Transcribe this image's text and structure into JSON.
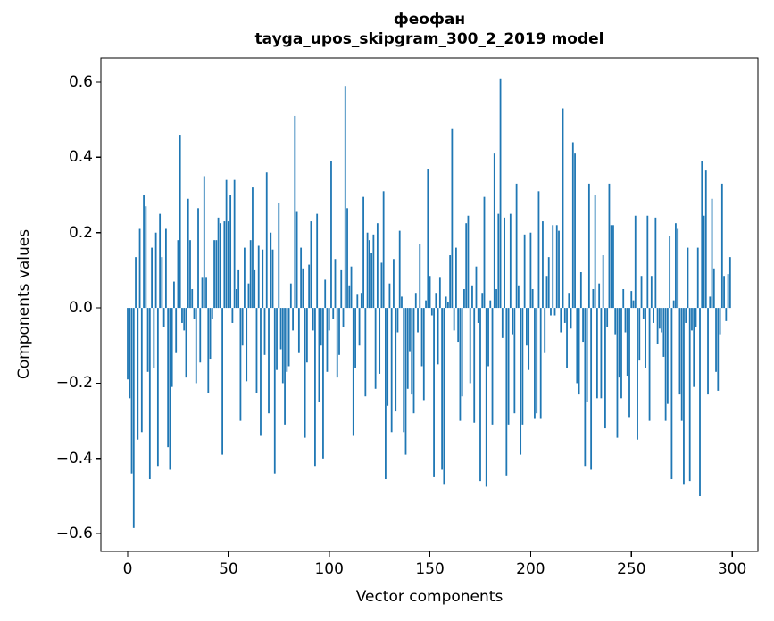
{
  "title": {
    "line1": "феофан",
    "line2": "tayga_upos_skipgram_300_2_2019 model"
  },
  "axes": {
    "xlabel": "Vector components",
    "ylabel": "Components values",
    "xticks": [
      0,
      50,
      100,
      150,
      200,
      250,
      300
    ],
    "xtick_labels": [
      "0",
      "50",
      "100",
      "150",
      "200",
      "250",
      "300"
    ],
    "yticks": [
      0.6,
      0.4,
      0.2,
      0.0,
      -0.2,
      -0.4,
      -0.6
    ],
    "ytick_labels": [
      "0.6",
      "0.4",
      "0.2",
      "0.0",
      "−0.2",
      "−0.4",
      "−0.6"
    ]
  },
  "colors": {
    "bar": "#1f77b4",
    "spine": "#000000",
    "text": "#000000",
    "background": "#ffffff"
  },
  "chart_data": {
    "type": "bar",
    "title": "феофан\ntayga_upos_skipgram_300_2_2019 model",
    "xlabel": "Vector components",
    "ylabel": "Components values",
    "n_components": 300,
    "xlim": [
      -13.3,
      312.8
    ],
    "ylim": [
      -0.647,
      0.664
    ],
    "grid": false,
    "legend": "none",
    "bar_color": "#1f77b4",
    "values": [
      -0.19,
      -0.24,
      -0.44,
      -0.585,
      0.135,
      -0.35,
      0.21,
      -0.33,
      0.3,
      0.27,
      -0.17,
      -0.455,
      0.16,
      -0.16,
      0.2,
      -0.42,
      0.25,
      0.135,
      -0.05,
      0.21,
      -0.37,
      -0.43,
      -0.21,
      0.07,
      -0.12,
      0.18,
      0.46,
      -0.04,
      -0.06,
      -0.185,
      0.29,
      0.18,
      0.05,
      -0.03,
      -0.2,
      0.265,
      -0.145,
      0.08,
      0.35,
      0.08,
      -0.225,
      -0.135,
      -0.03,
      0.18,
      0.18,
      0.24,
      0.225,
      -0.39,
      0.23,
      0.34,
      0.23,
      0.3,
      -0.04,
      0.34,
      0.05,
      0.1,
      -0.3,
      -0.1,
      0.16,
      -0.195,
      0.065,
      0.18,
      0.32,
      0.1,
      -0.225,
      0.165,
      -0.34,
      0.155,
      -0.125,
      0.36,
      -0.28,
      0.2,
      0.155,
      -0.44,
      -0.165,
      0.28,
      -0.11,
      -0.2,
      -0.31,
      -0.17,
      -0.155,
      0.065,
      -0.06,
      0.51,
      0.255,
      -0.12,
      0.16,
      0.105,
      -0.345,
      -0.145,
      0.115,
      0.23,
      -0.06,
      -0.42,
      0.25,
      -0.25,
      -0.1,
      -0.4,
      0.075,
      -0.17,
      -0.06,
      0.39,
      -0.03,
      0.13,
      -0.185,
      -0.125,
      0.1,
      -0.05,
      0.59,
      0.265,
      0.06,
      0.11,
      -0.34,
      -0.16,
      0.035,
      -0.1,
      0.04,
      0.295,
      -0.235,
      0.2,
      0.18,
      0.145,
      0.195,
      -0.215,
      0.225,
      -0.175,
      0.12,
      0.31,
      -0.455,
      -0.26,
      0.065,
      -0.33,
      0.13,
      -0.275,
      -0.065,
      0.205,
      0.03,
      -0.33,
      -0.39,
      -0.215,
      -0.115,
      -0.23,
      -0.28,
      0.04,
      -0.065,
      0.17,
      -0.155,
      -0.245,
      0.02,
      0.37,
      0.085,
      -0.02,
      -0.45,
      0.04,
      -0.15,
      0.08,
      -0.43,
      -0.47,
      0.03,
      0.015,
      0.14,
      0.475,
      -0.06,
      0.16,
      -0.09,
      -0.3,
      -0.235,
      0.05,
      0.225,
      0.245,
      -0.2,
      0.06,
      -0.305,
      0.11,
      -0.04,
      -0.46,
      0.04,
      0.295,
      -0.475,
      -0.155,
      0.02,
      -0.31,
      0.41,
      0.05,
      0.25,
      0.61,
      -0.08,
      0.24,
      -0.445,
      -0.31,
      0.25,
      -0.07,
      -0.28,
      0.33,
      0.06,
      -0.39,
      -0.31,
      0.195,
      -0.1,
      -0.165,
      0.2,
      0.05,
      -0.295,
      -0.28,
      0.31,
      -0.295,
      0.23,
      -0.12,
      0.085,
      0.135,
      -0.02,
      0.22,
      -0.02,
      0.22,
      0.205,
      -0.065,
      0.53,
      -0.04,
      -0.16,
      0.04,
      -0.055,
      0.44,
      0.41,
      -0.2,
      -0.23,
      0.095,
      -0.09,
      -0.42,
      -0.25,
      0.33,
      -0.43,
      0.05,
      0.3,
      -0.24,
      0.065,
      -0.24,
      0.14,
      -0.32,
      -0.05,
      0.33,
      0.22,
      0.22,
      -0.07,
      -0.345,
      -0.185,
      -0.24,
      0.05,
      -0.065,
      -0.18,
      -0.29,
      0.045,
      0.02,
      0.245,
      -0.35,
      -0.14,
      0.085,
      -0.03,
      -0.16,
      0.245,
      -0.3,
      0.085,
      -0.04,
      0.24,
      -0.095,
      -0.055,
      -0.065,
      -0.13,
      -0.3,
      -0.255,
      0.19,
      -0.455,
      0.02,
      0.225,
      0.21,
      -0.23,
      -0.3,
      -0.47,
      -0.04,
      0.16,
      -0.46,
      -0.06,
      -0.21,
      -0.05,
      0.16,
      -0.5,
      0.39,
      0.245,
      0.365,
      -0.23,
      0.03,
      0.29,
      0.105,
      -0.17,
      -0.22,
      -0.07,
      0.33,
      0.085,
      -0.035,
      0.09,
      0.135
    ]
  }
}
